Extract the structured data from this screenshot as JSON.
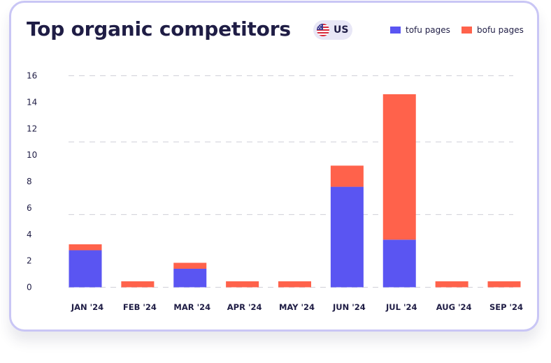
{
  "chart_data": {
    "type": "bar",
    "stacked": true,
    "title": "Top organic competitors",
    "region": "US",
    "categories": [
      "JAN '24",
      "FEB '24",
      "MAR '24",
      "APR '24",
      "MAY '24",
      "JUN '24",
      "JUL '24",
      "AUG '24",
      "SEP '24"
    ],
    "series": [
      {
        "name": "tofu pages",
        "color": "#5a55f2",
        "values": [
          2.8,
          0,
          1.4,
          0,
          0,
          7.6,
          3.6,
          0,
          0
        ]
      },
      {
        "name": "bofu pages",
        "color": "#ff624b",
        "values": [
          0.45,
          0.45,
          0.45,
          0.45,
          0.45,
          1.6,
          11.0,
          0.45,
          0.45
        ]
      }
    ],
    "yticks": [
      "0",
      "2",
      "4",
      "6",
      "8",
      "10",
      "12",
      "14",
      "16"
    ],
    "ylim": [
      0,
      16
    ],
    "gridlines": [
      0,
      5.5,
      11,
      16
    ],
    "grid": true,
    "legend_position": "top-right"
  }
}
